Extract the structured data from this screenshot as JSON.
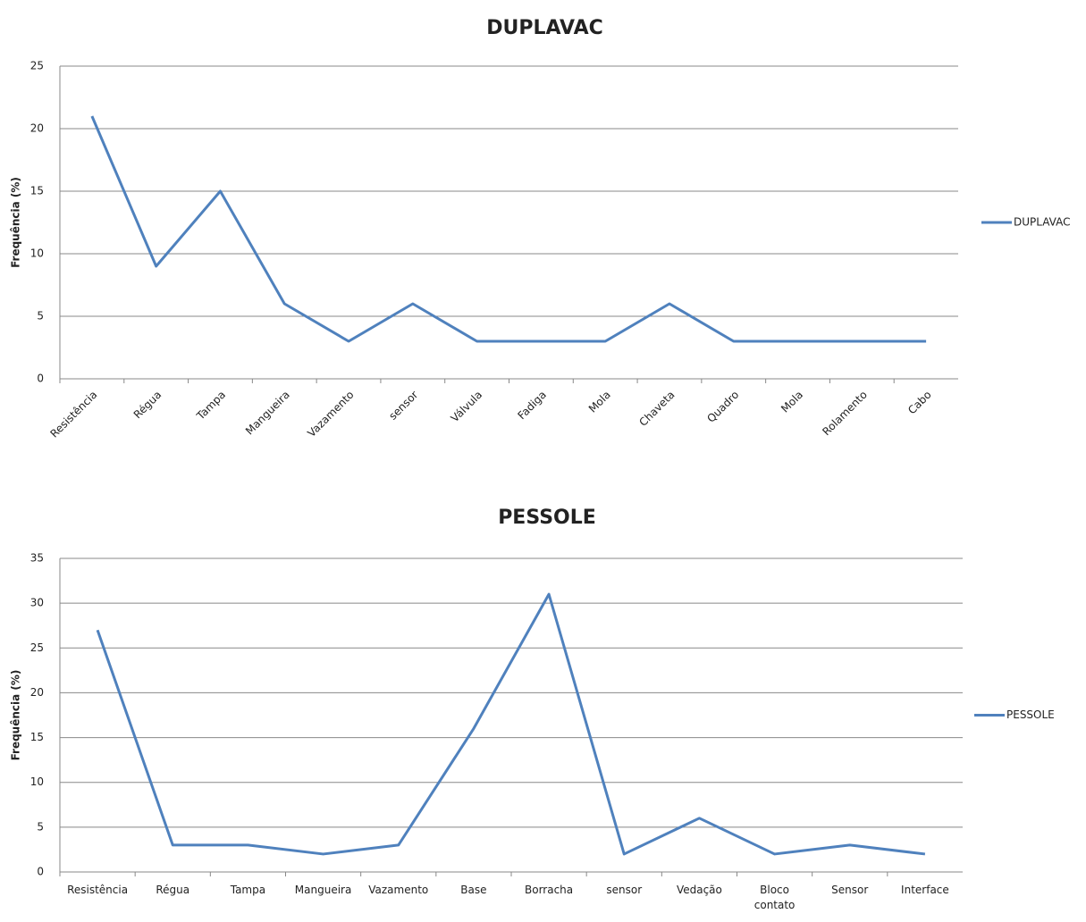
{
  "chart_data": [
    {
      "type": "line",
      "title": "DUPLAVAC",
      "y_label": "Frequência (%)",
      "categories": [
        "Resistência",
        "Régua",
        "Tampa",
        "Mangueira",
        "Vazamento",
        "sensor",
        "Válvula",
        "Fadiga",
        "Mola",
        "Chaveta",
        "Quadro",
        "Mola",
        "Rolamento",
        "Cabo"
      ],
      "series": [
        {
          "name": "DUPLAVAC",
          "color": "#4f81bd",
          "values": [
            21,
            9,
            15,
            6,
            3,
            6,
            3,
            3,
            3,
            6,
            3,
            3,
            3,
            3
          ]
        }
      ],
      "ylim": [
        0,
        25
      ],
      "yticks": [
        0,
        5,
        10,
        15,
        20,
        25
      ],
      "grid": true,
      "legend": "right"
    },
    {
      "type": "line",
      "title": "PESSOLE",
      "y_label": "Frequência (%)",
      "categories": [
        "Resistência",
        "Régua",
        "Tampa",
        "Mangueira",
        "Vazamento",
        "Base",
        "Borracha",
        "sensor",
        "Vedação",
        "Bloco contato",
        "Sensor",
        "Interface"
      ],
      "series": [
        {
          "name": "PESSOLE",
          "color": "#4f81bd",
          "values": [
            27,
            3,
            3,
            2,
            3,
            16,
            31,
            2,
            6,
            2,
            3,
            2
          ]
        }
      ],
      "ylim": [
        0,
        35
      ],
      "yticks": [
        0,
        5,
        10,
        15,
        20,
        25,
        30,
        35
      ],
      "grid": true,
      "legend": "right"
    }
  ]
}
